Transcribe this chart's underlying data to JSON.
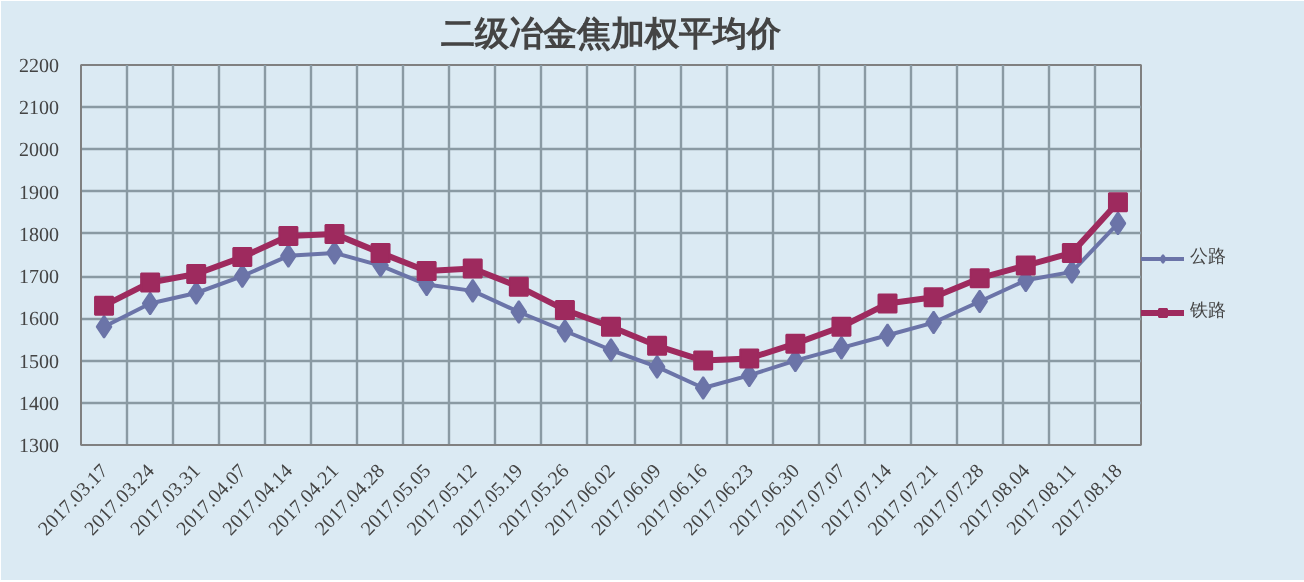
{
  "chart_data": {
    "type": "line",
    "title": "二级冶金焦加权平均价",
    "categories": [
      "2017.03.17",
      "2017.03.24",
      "2017.03.31",
      "2017.04.07",
      "2017.04.14",
      "2017.04.21",
      "2017.04.28",
      "2017.05.05",
      "2017.05.12",
      "2017.05.19",
      "2017.05.26",
      "2017.06.02",
      "2017.06.09",
      "2017.06.16",
      "2017.06.23",
      "2017.06.30",
      "2017.07.07",
      "2017.07.14",
      "2017.07.21",
      "2017.07.28",
      "2017.08.04",
      "2017.08.11",
      "2017.08.18"
    ],
    "series": [
      {
        "name": "公路",
        "color": "#6b74a8",
        "marker": "diamond",
        "values": [
          1580,
          1635,
          1660,
          1700,
          1748,
          1755,
          1725,
          1680,
          1665,
          1615,
          1570,
          1525,
          1485,
          1435,
          1465,
          1500,
          1530,
          1560,
          1590,
          1640,
          1690,
          1710,
          1825
        ]
      },
      {
        "name": "铁路",
        "color": "#9e2a5e",
        "marker": "square",
        "values": [
          1630,
          1685,
          1705,
          1745,
          1795,
          1800,
          1755,
          1712,
          1718,
          1675,
          1620,
          1580,
          1535,
          1500,
          1505,
          1540,
          1580,
          1635,
          1650,
          1695,
          1725,
          1755,
          1875
        ]
      }
    ],
    "ylim": [
      1300,
      2200
    ],
    "yticks": [
      1300,
      1400,
      1500,
      1600,
      1700,
      1800,
      1900,
      2000,
      2100,
      2200
    ],
    "grid": true,
    "legend": "right"
  }
}
